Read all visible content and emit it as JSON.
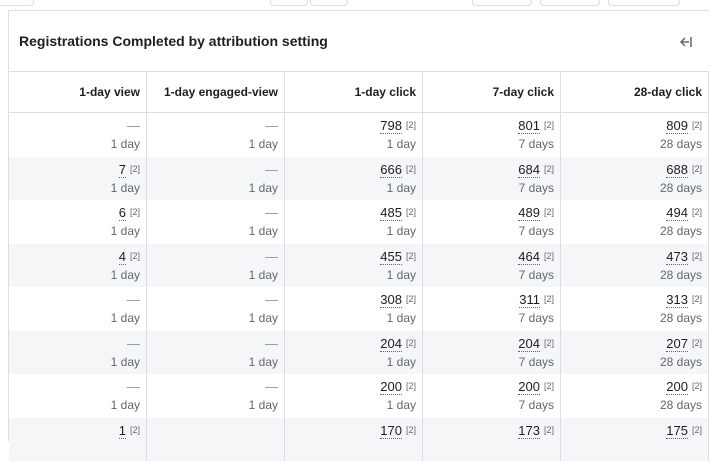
{
  "panel": {
    "title": "Registrations Completed by attribution setting",
    "collapse_icon": "collapse-right-icon"
  },
  "columns": [
    "1-day view",
    "1-day engaged-view",
    "1-day click",
    "7-day click",
    "28-day click"
  ],
  "rows": [
    {
      "cells": [
        {
          "value": "—",
          "sub": "1 day"
        },
        {
          "value": "—",
          "sub": "1 day"
        },
        {
          "value": "798",
          "ref": "[2]",
          "sub": "1 day"
        },
        {
          "value": "801",
          "ref": "[2]",
          "sub": "7 days"
        },
        {
          "value": "809",
          "ref": "[2]",
          "sub": "28 days"
        }
      ]
    },
    {
      "cells": [
        {
          "value": "7",
          "ref": "[2]",
          "sub": "1 day"
        },
        {
          "value": "—",
          "sub": "1 day"
        },
        {
          "value": "666",
          "ref": "[2]",
          "sub": "1 day"
        },
        {
          "value": "684",
          "ref": "[2]",
          "sub": "7 days"
        },
        {
          "value": "688",
          "ref": "[2]",
          "sub": "28 days"
        }
      ]
    },
    {
      "cells": [
        {
          "value": "6",
          "ref": "[2]",
          "sub": "1 day"
        },
        {
          "value": "—",
          "sub": "1 day"
        },
        {
          "value": "485",
          "ref": "[2]",
          "sub": "1 day"
        },
        {
          "value": "489",
          "ref": "[2]",
          "sub": "7 days"
        },
        {
          "value": "494",
          "ref": "[2]",
          "sub": "28 days"
        }
      ]
    },
    {
      "cells": [
        {
          "value": "4",
          "ref": "[2]",
          "sub": "1 day"
        },
        {
          "value": "—",
          "sub": "1 day"
        },
        {
          "value": "455",
          "ref": "[2]",
          "sub": "1 day"
        },
        {
          "value": "464",
          "ref": "[2]",
          "sub": "7 days"
        },
        {
          "value": "473",
          "ref": "[2]",
          "sub": "28 days"
        }
      ]
    },
    {
      "cells": [
        {
          "value": "—",
          "sub": "1 day"
        },
        {
          "value": "—",
          "sub": "1 day"
        },
        {
          "value": "308",
          "ref": "[2]",
          "sub": "1 day"
        },
        {
          "value": "311",
          "ref": "[2]",
          "sub": "7 days"
        },
        {
          "value": "313",
          "ref": "[2]",
          "sub": "28 days"
        }
      ]
    },
    {
      "cells": [
        {
          "value": "—",
          "sub": "1 day"
        },
        {
          "value": "—",
          "sub": "1 day"
        },
        {
          "value": "204",
          "ref": "[2]",
          "sub": "1 day"
        },
        {
          "value": "204",
          "ref": "[2]",
          "sub": "7 days"
        },
        {
          "value": "207",
          "ref": "[2]",
          "sub": "28 days"
        }
      ]
    },
    {
      "cells": [
        {
          "value": "—",
          "sub": "1 day"
        },
        {
          "value": "—",
          "sub": "1 day"
        },
        {
          "value": "200",
          "ref": "[2]",
          "sub": "1 day"
        },
        {
          "value": "200",
          "ref": "[2]",
          "sub": "7 days"
        },
        {
          "value": "200",
          "ref": "[2]",
          "sub": "28 days"
        }
      ]
    },
    {
      "cells": [
        {
          "value": "1",
          "ref": "[2]",
          "sub": ""
        },
        {
          "value": "",
          "sub": ""
        },
        {
          "value": "170",
          "ref": "[2]",
          "sub": ""
        },
        {
          "value": "173",
          "ref": "[2]",
          "sub": ""
        },
        {
          "value": "175",
          "ref": "[2]",
          "sub": ""
        }
      ]
    }
  ]
}
